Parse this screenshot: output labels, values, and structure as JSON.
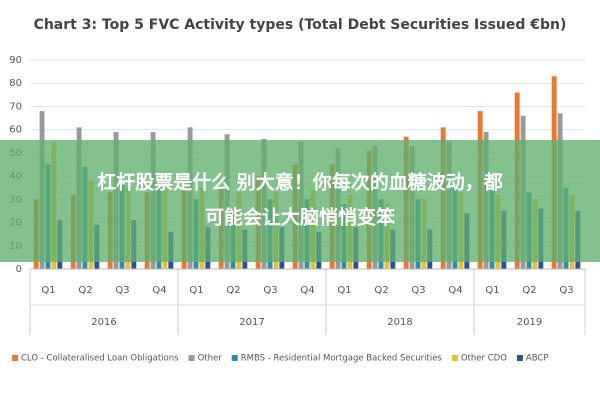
{
  "chart_data": {
    "type": "bar",
    "title": "Chart 3: Top 5 FVC Activity types (Total Debt Securities Issued €bn)",
    "categories": [
      "Q1",
      "Q2",
      "Q3",
      "Q4",
      "Q1",
      "Q2",
      "Q3",
      "Q4",
      "Q1",
      "Q2",
      "Q3",
      "Q4",
      "Q1",
      "Q2",
      "Q3"
    ],
    "x_groups": [
      "2016",
      "2017",
      "2018",
      "2019"
    ],
    "series": [
      {
        "name": "CLO - Collateralised Loan Obligations",
        "color": "#e8792f",
        "values": [
          30,
          32,
          33,
          33,
          35,
          35,
          40,
          45,
          45,
          51,
          57,
          61,
          68,
          76,
          83
        ]
      },
      {
        "name": "Other",
        "color": "#9a9a9a",
        "values": [
          68,
          61,
          59,
          59,
          61,
          58,
          56,
          55,
          52,
          53,
          53,
          55,
          59,
          66,
          67
        ]
      },
      {
        "name": "RMBS - Residential Mortgage Backed Securities",
        "color": "#2e8fa6",
        "values": [
          45,
          44,
          37,
          35,
          30,
          25,
          30,
          30,
          28,
          30,
          30,
          35,
          34,
          33,
          35
        ]
      },
      {
        "name": "Other CDO",
        "color": "#e8c12f",
        "values": [
          55,
          38,
          35,
          35,
          35,
          33,
          33,
          34,
          32,
          28,
          30,
          33,
          32,
          30,
          32
        ]
      },
      {
        "name": "ABCP",
        "color": "#2d4f9e",
        "values": [
          21,
          19,
          21,
          16,
          18,
          17,
          18,
          16,
          18,
          17,
          17,
          24,
          25,
          26,
          25
        ]
      }
    ],
    "ylim": [
      0,
      90
    ],
    "yticks": [
      0,
      10,
      20,
      30,
      40,
      50,
      60,
      70,
      80,
      90
    ],
    "grid": true,
    "legend": "bottom"
  },
  "banner": {
    "lines": [
      "杠杆股票是什么 别大意！你每次的血糖波动，都",
      "可能会让大脑悄悄变笨"
    ]
  }
}
